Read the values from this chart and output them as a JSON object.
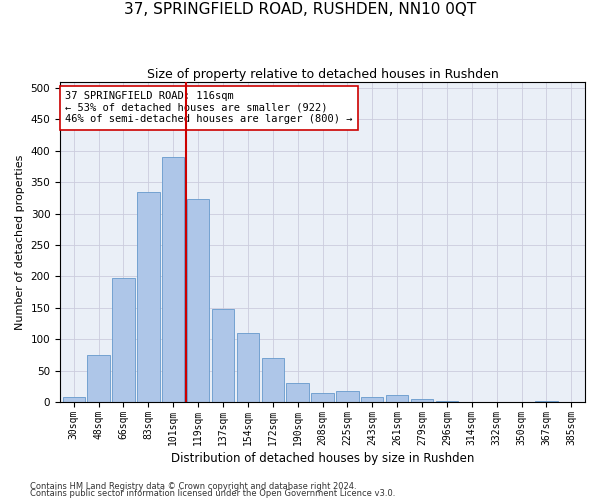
{
  "title": "37, SPRINGFIELD ROAD, RUSHDEN, NN10 0QT",
  "subtitle": "Size of property relative to detached houses in Rushden",
  "xlabel": "Distribution of detached houses by size in Rushden",
  "ylabel": "Number of detached properties",
  "bin_labels": [
    "30sqm",
    "48sqm",
    "66sqm",
    "83sqm",
    "101sqm",
    "119sqm",
    "137sqm",
    "154sqm",
    "172sqm",
    "190sqm",
    "208sqm",
    "225sqm",
    "243sqm",
    "261sqm",
    "279sqm",
    "296sqm",
    "314sqm",
    "332sqm",
    "350sqm",
    "367sqm",
    "385sqm"
  ],
  "bar_heights": [
    8,
    75,
    197,
    335,
    390,
    323,
    148,
    110,
    70,
    30,
    15,
    18,
    8,
    12,
    5,
    2,
    1,
    0,
    0,
    2,
    0
  ],
  "bar_color": "#aec6e8",
  "bar_edge_color": "#6699cc",
  "vline_color": "#cc0000",
  "annotation_text": "37 SPRINGFIELD ROAD: 116sqm\n← 53% of detached houses are smaller (922)\n46% of semi-detached houses are larger (800) →",
  "annotation_box_color": "#ffffff",
  "annotation_box_edge_color": "#cc0000",
  "ylim": [
    0,
    510
  ],
  "yticks": [
    0,
    50,
    100,
    150,
    200,
    250,
    300,
    350,
    400,
    450,
    500
  ],
  "footer_line1": "Contains HM Land Registry data © Crown copyright and database right 2024.",
  "footer_line2": "Contains public sector information licensed under the Open Government Licence v3.0.",
  "bg_color": "#ffffff",
  "grid_color": "#ccccdd",
  "title_fontsize": 11,
  "subtitle_fontsize": 9,
  "ylabel_fontsize": 8,
  "xlabel_fontsize": 8.5,
  "tick_fontsize": 7,
  "footer_fontsize": 6,
  "annotation_fontsize": 7.5
}
